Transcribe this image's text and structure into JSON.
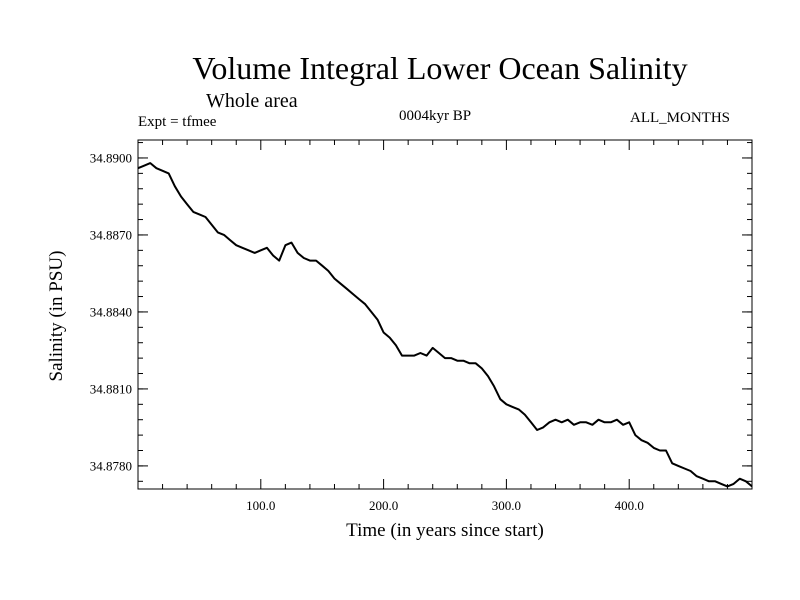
{
  "chart_data": {
    "type": "line",
    "title": "Volume Integral Lower Ocean Salinity",
    "subtitle": "Whole area",
    "expt_label": "Expt = tfmee",
    "period_label": "0004kyr BP",
    "months_label": "ALL_MONTHS",
    "xlabel": "Time (in years since start)",
    "ylabel": "Salinity (in PSU)",
    "xlim": [
      0,
      500
    ],
    "ylim": [
      34.8771,
      34.8907
    ],
    "xticks": [
      100,
      200,
      300,
      400
    ],
    "xtick_labels": [
      "100.0",
      "200.0",
      "300.0",
      "400.0"
    ],
    "yticks": [
      34.878,
      34.881,
      34.884,
      34.887,
      34.89
    ],
    "ytick_labels": [
      "34.8780",
      "34.8810",
      "34.8840",
      "34.8870",
      "34.8900"
    ],
    "grid": false,
    "series": [
      {
        "color": "#000000",
        "x": [
          0,
          5,
          10,
          15,
          20,
          25,
          30,
          35,
          40,
          45,
          50,
          55,
          60,
          65,
          70,
          75,
          80,
          85,
          90,
          95,
          100,
          105,
          110,
          115,
          120,
          125,
          130,
          135,
          140,
          145,
          150,
          155,
          160,
          165,
          170,
          175,
          180,
          185,
          190,
          195,
          200,
          205,
          210,
          215,
          220,
          225,
          230,
          235,
          240,
          245,
          250,
          255,
          260,
          265,
          270,
          275,
          280,
          285,
          290,
          295,
          300,
          305,
          310,
          315,
          320,
          325,
          330,
          335,
          340,
          345,
          350,
          355,
          360,
          365,
          370,
          375,
          380,
          385,
          390,
          395,
          400,
          405,
          410,
          415,
          420,
          425,
          430,
          435,
          440,
          445,
          450,
          455,
          460,
          465,
          470,
          475,
          480,
          485,
          490,
          495,
          500
        ],
        "values": [
          34.8896,
          34.8897,
          34.8898,
          34.8896,
          34.8895,
          34.8894,
          34.8889,
          34.8885,
          34.8882,
          34.8879,
          34.8878,
          34.8877,
          34.8874,
          34.8871,
          34.887,
          34.8868,
          34.8866,
          34.8865,
          34.8864,
          34.8863,
          34.8864,
          34.8865,
          34.8862,
          34.886,
          34.8866,
          34.8867,
          34.8863,
          34.8861,
          34.886,
          34.886,
          34.8858,
          34.8856,
          34.8853,
          34.8851,
          34.8849,
          34.8847,
          34.8845,
          34.8843,
          34.884,
          34.8837,
          34.8832,
          34.883,
          34.8827,
          34.8823,
          34.8823,
          34.8823,
          34.8824,
          34.8823,
          34.8826,
          34.8824,
          34.8822,
          34.8822,
          34.8821,
          34.8821,
          34.882,
          34.882,
          34.8818,
          34.8815,
          34.8811,
          34.8806,
          34.8804,
          34.8803,
          34.8802,
          34.88,
          34.8797,
          34.8794,
          34.8795,
          34.8797,
          34.8798,
          34.8797,
          34.8798,
          34.8796,
          34.8797,
          34.8797,
          34.8796,
          34.8798,
          34.8797,
          34.8797,
          34.8798,
          34.8796,
          34.8797,
          34.8792,
          34.879,
          34.8789,
          34.8787,
          34.8786,
          34.8786,
          34.8781,
          34.878,
          34.8779,
          34.8778,
          34.8776,
          34.8775,
          34.8774,
          34.8774,
          34.8773,
          34.8772,
          34.8773,
          34.8775,
          34.8774,
          34.8772
        ]
      }
    ]
  }
}
